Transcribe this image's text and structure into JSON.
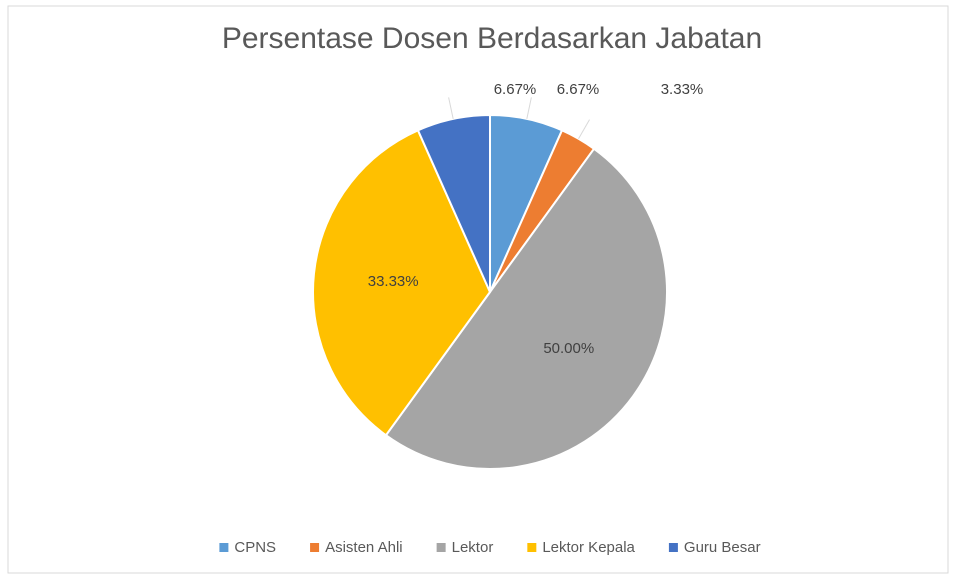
{
  "chart_data": {
    "type": "pie",
    "title": "Persentase Dosen Berdasarkan Jabatan",
    "categories": [
      "CPNS",
      "Asisten Ahli",
      "Lektor",
      "Lektor Kepala",
      "Guru Besar"
    ],
    "values": [
      6.67,
      3.33,
      50.0,
      33.33,
      6.67
    ],
    "value_labels": [
      "6.67%",
      "3.33%",
      "50.00%",
      "33.33%",
      "6.67%"
    ],
    "colors": [
      "#5b9bd5",
      "#ed7d31",
      "#a5a5a5",
      "#ffc000",
      "#4472c4"
    ],
    "legend": "bottom"
  }
}
